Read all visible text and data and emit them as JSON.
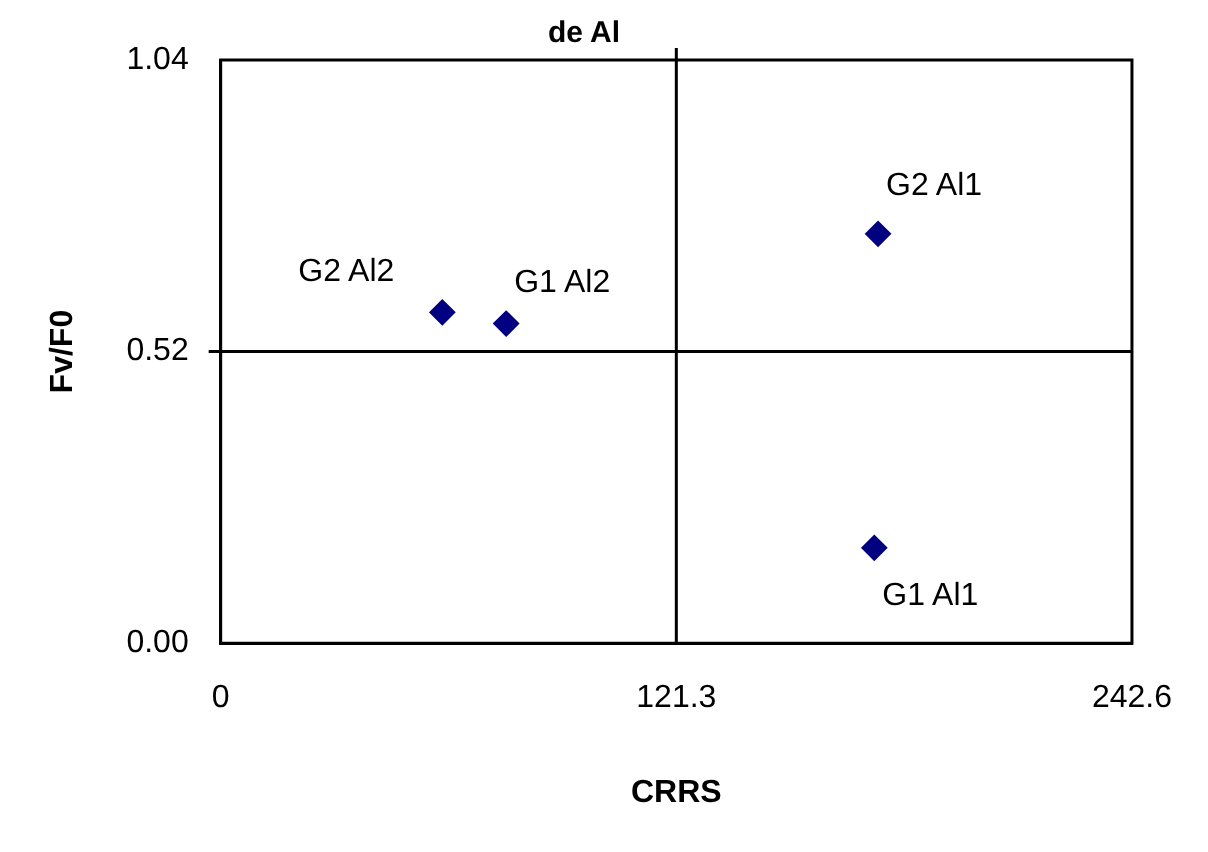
{
  "chart_data": {
    "type": "scatter",
    "title": "de Al",
    "xlabel": "CRRS",
    "ylabel": "Fv/F0",
    "series": [
      {
        "color": "#000080",
        "x": [
          59,
          76,
          175,
          174
        ],
        "values": [
          0.59,
          0.57,
          0.73,
          0.17
        ]
      }
    ],
    "xlim": [
      0,
      242.6
    ],
    "xticks": [
      0,
      121.3,
      242.6
    ],
    "ylim": [
      0,
      1.04
    ],
    "yticks": [
      {
        "value": 0,
        "label": "0.00"
      },
      0.52,
      1.04
    ],
    "ref_lines": [
      {
        "axis": "x",
        "value": 121.3
      },
      {
        "axis": "y",
        "value": 0.52
      }
    ],
    "marker": "diamond",
    "grid": false,
    "legend": false,
    "annotations": [
      {
        "text": "G2 Al2",
        "x": 59,
        "y": 0.59
      },
      {
        "text": "G1 Al2",
        "x": 76,
        "y": 0.57
      },
      {
        "text": "G2 Al1",
        "x": 175,
        "y": 0.73
      },
      {
        "text": "G1 Al1",
        "x": 174,
        "y": 0.17
      }
    ]
  }
}
